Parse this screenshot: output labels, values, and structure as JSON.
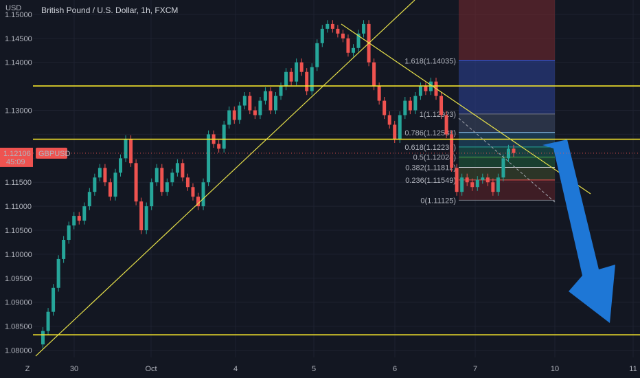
{
  "header": {
    "currency": "USD",
    "symbol_title": "British Pound / U.S. Dollar, 1h, FXCM"
  },
  "price_tag": {
    "value": "1.12106",
    "countdown": "45:09",
    "symbol": "GBPUSD"
  },
  "colors": {
    "background": "#131722",
    "up": "#26a69a",
    "down": "#ef5350",
    "level_line": "#f5e52b",
    "trend_line": "#e6e04a",
    "arrow": "#1e77d6"
  },
  "chart_data": {
    "type": "candlestick",
    "title": "British Pound / U.S. Dollar, 1h, FXCM",
    "ylim": [
      1.0785,
      1.153
    ],
    "y_ticks": [
      1.08,
      1.085,
      1.09,
      1.095,
      1.1,
      1.105,
      1.11,
      1.115,
      1.12,
      1.125,
      1.13,
      1.135,
      1.14,
      1.145,
      1.15
    ],
    "y_tick_labels": [
      "1.08000",
      "1.08500",
      "1.09000",
      "1.09500",
      "1.10000",
      "1.10500",
      "1.11000",
      "1.11500",
      "",
      "",
      "1.13000",
      "",
      "1.14000",
      "1.14500",
      "1.15000"
    ],
    "x_labels": [
      "30",
      "Oct",
      "4",
      "5",
      "6",
      "7",
      "10",
      "11"
    ],
    "horizontal_levels": [
      {
        "label": "1.13508",
        "value": 1.13508
      },
      {
        "label": "1.12398",
        "value": 1.12398
      },
      {
        "label": "1.08320",
        "value": 1.0832
      }
    ],
    "fib_levels": [
      {
        "label": "1.618(1.14035)",
        "value": 1.14035,
        "color": "#2962ff"
      },
      {
        "label": "1(1.12923)",
        "value": 1.12923,
        "color": "#787b86"
      },
      {
        "label": "0.786(1.12538)",
        "value": 1.12538,
        "color": "#90caf9"
      },
      {
        "label": "0.618(1.12235)",
        "value": 1.12235,
        "color": "#26a69a"
      },
      {
        "label": "0.5(1.12024)",
        "value": 1.12024,
        "color": "#4caf50"
      },
      {
        "label": "0.382(1.11812)",
        "value": 1.11812,
        "color": "#d1d4dc"
      },
      {
        "label": "0.236(1.11549)",
        "value": 1.11549,
        "color": "#ef5350"
      },
      {
        "label": "0(1.11125)",
        "value": 1.11125,
        "color": "#787b86"
      }
    ],
    "price_path": [
      1.0812,
      1.084,
      1.088,
      1.093,
      1.099,
      1.103,
      1.106,
      1.108,
      1.107,
      1.11,
      1.113,
      1.116,
      1.118,
      1.115,
      1.112,
      1.117,
      1.12,
      1.124,
      1.119,
      1.111,
      1.105,
      1.11,
      1.115,
      1.118,
      1.113,
      1.115,
      1.117,
      1.119,
      1.116,
      1.114,
      1.112,
      1.11,
      1.115,
      1.125,
      1.123,
      1.122,
      1.127,
      1.13,
      1.128,
      1.131,
      1.133,
      1.13,
      1.129,
      1.132,
      1.134,
      1.13,
      1.133,
      1.135,
      1.138,
      1.136,
      1.14,
      1.138,
      1.134,
      1.139,
      1.144,
      1.147,
      1.148,
      1.147,
      1.146,
      1.145,
      1.142,
      1.143,
      1.146,
      1.148,
      1.14,
      1.135,
      1.132,
      1.129,
      1.127,
      1.124,
      1.129,
      1.132,
      1.13,
      1.133,
      1.135,
      1.134,
      1.136,
      1.133,
      1.129,
      1.125,
      1.118,
      1.113,
      1.116,
      1.115,
      1.114,
      1.1155,
      1.116,
      1.115,
      1.113,
      1.116,
      1.12,
      1.122,
      1.1211
    ]
  }
}
